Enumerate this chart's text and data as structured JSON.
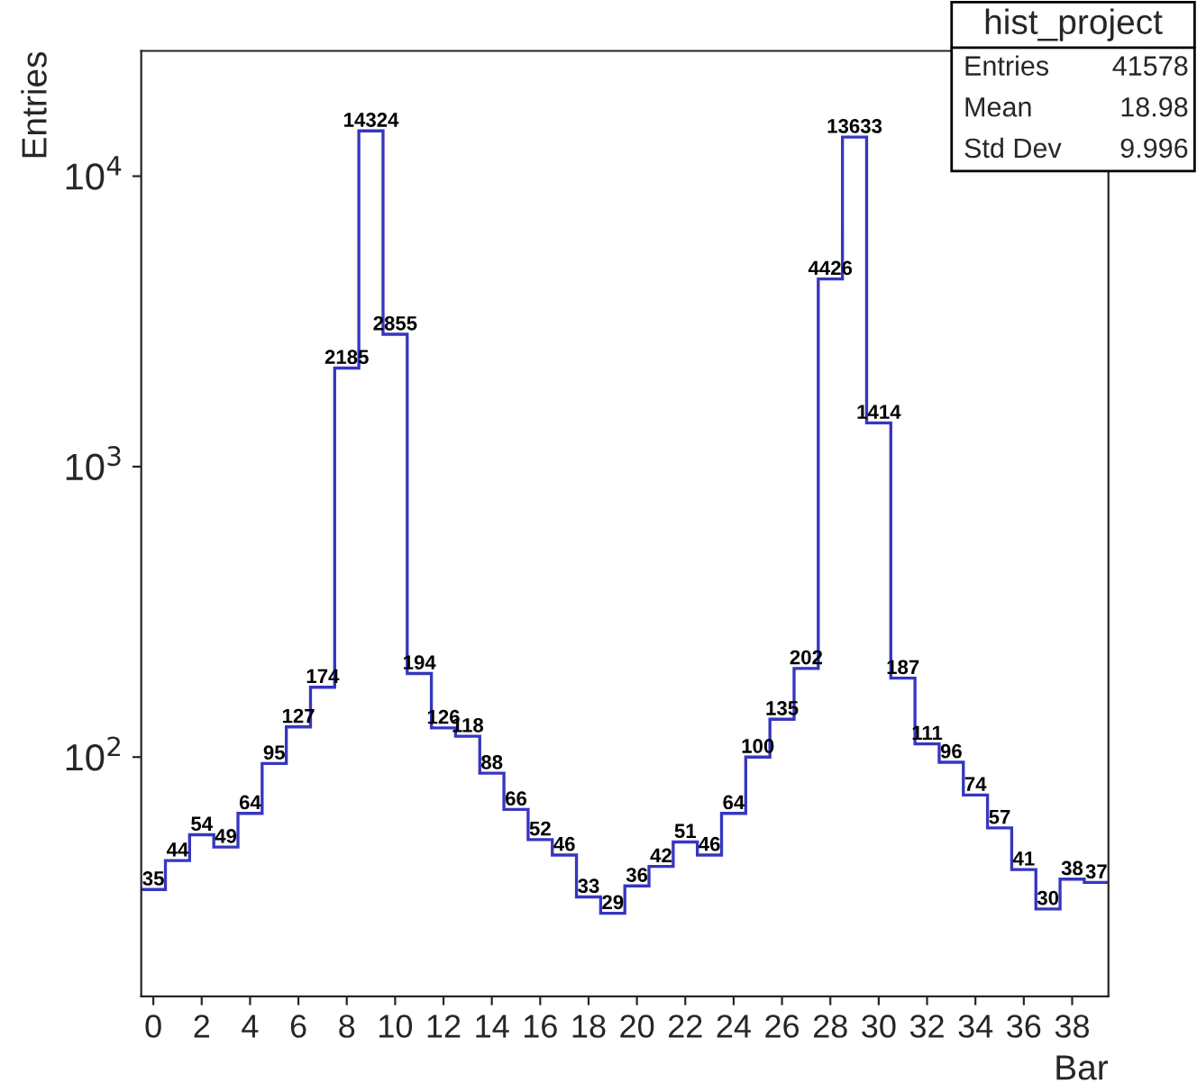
{
  "chart_data": {
    "type": "histogram",
    "xlabel": "Bar",
    "ylabel": "Entries",
    "bins": [
      -0.5,
      0.5,
      1.5,
      2.5,
      3.5,
      4.5,
      5.5,
      6.5,
      7.5,
      8.5,
      9.5,
      10.5,
      11.5,
      12.5,
      13.5,
      14.5,
      15.5,
      16.5,
      17.5,
      18.5,
      19.5,
      20.5,
      21.5,
      22.5,
      23.5,
      24.5,
      25.5,
      26.5,
      27.5,
      28.5,
      29.5,
      30.5,
      31.5,
      32.5,
      33.5,
      34.5,
      35.5,
      36.5,
      37.5,
      38.5,
      39.5
    ],
    "values": [
      35,
      44,
      54,
      49,
      64,
      95,
      127,
      174,
      2185,
      14324,
      2855,
      194,
      126,
      118,
      88,
      66,
      52,
      46,
      33,
      29,
      36,
      42,
      51,
      46,
      64,
      100,
      135,
      202,
      4426,
      13633,
      1414,
      187,
      111,
      96,
      74,
      57,
      41,
      30,
      38,
      37
    ],
    "color": "#3636c0",
    "data_labels": true,
    "log": "y",
    "xlim": [
      -0.5,
      39.5
    ],
    "xticks": [
      0,
      2,
      4,
      6,
      8,
      10,
      12,
      14,
      16,
      18,
      20,
      22,
      24,
      26,
      28,
      30,
      32,
      34,
      36,
      38
    ],
    "ylim": [
      15,
      27000
    ],
    "yticks": [
      {
        "value": 100,
        "label": "10$^{2}$"
      },
      {
        "value": 1000,
        "label": "10$^{3}$"
      },
      {
        "value": 10000,
        "label": "10$^{4}$"
      }
    ],
    "grid": false,
    "legend": false,
    "annotations": [
      "hist_project",
      "Entries",
      "41578",
      "Mean",
      "18.98",
      "Std Dev",
      "9.996"
    ]
  }
}
